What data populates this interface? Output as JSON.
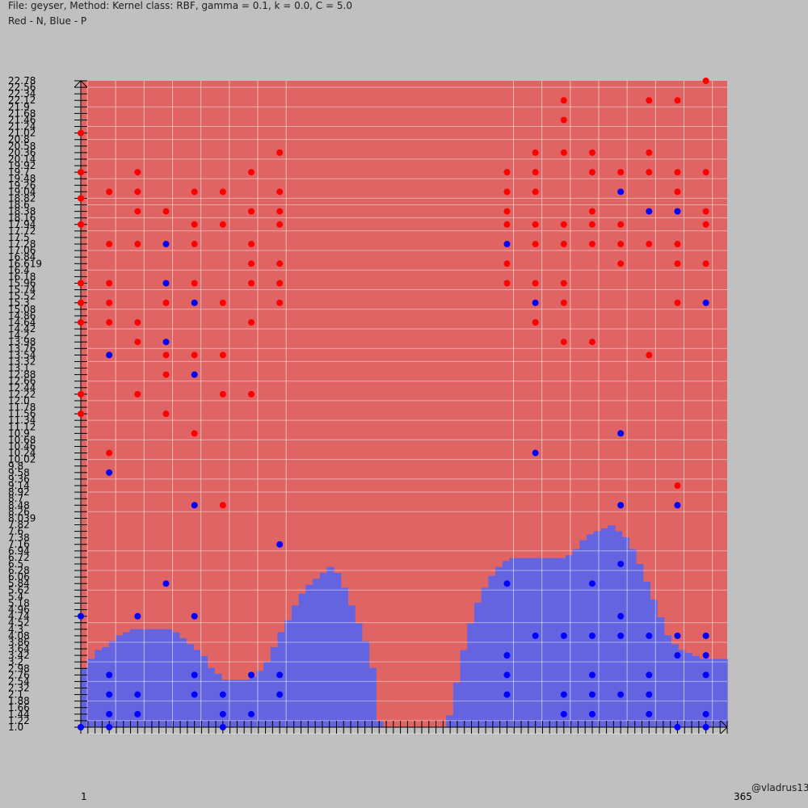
{
  "header": {
    "title": "File: geyser, Method: Kernel class: RBF, gamma = 0.1, k = 0.0, C = 5.0",
    "subtitle": "Red - N, Blue - P"
  },
  "credit": "@vladrus13",
  "colors": {
    "background": "#c0c0c0",
    "region_n": "#e06464",
    "region_p": "#6464e0",
    "point_n": "#ff0000",
    "point_p": "#0000ff"
  },
  "chart_data": {
    "type": "scatter",
    "title": "File: geyser, Method: Kernel class: RBF, gamma = 0.1, k = 0.0, C = 5.0",
    "legend": "Red - N, Blue - P",
    "xlim": [
      1,
      365
    ],
    "ylim": [
      1.0,
      22.78
    ],
    "x_ticks_visible_ends": [
      "1",
      "365"
    ],
    "y_tick_labels": [
      "1.0",
      "1.22",
      "1.44",
      "1.66",
      "1.88",
      "2.1",
      "2.32",
      "2.54",
      "2.76",
      "2.98",
      "3.2",
      "3.42",
      "3.64",
      "3.86",
      "4.08",
      "4.3",
      "4.52",
      "4.74",
      "4.96",
      "5.18",
      "5.4",
      "5.62",
      "5.84",
      "6.06",
      "6.28",
      "6.5",
      "6.72",
      "6.94",
      "7.16",
      "7.38",
      "7.6",
      "7.82",
      "8.039",
      "8.26",
      "8.48",
      "8.7",
      "8.92",
      "9.14",
      "9.36",
      "9.58",
      "9.8",
      "10.02",
      "10.24",
      "10.46",
      "10.68",
      "10.9",
      "11.12",
      "11.34",
      "11.56",
      "11.78",
      "12.0",
      "12.22",
      "12.44",
      "12.66",
      "12.88",
      "13.1",
      "13.32",
      "13.54",
      "13.76",
      "13.98",
      "14.2",
      "14.42",
      "14.64",
      "14.86",
      "15.08",
      "15.3",
      "15.52",
      "15.74",
      "15.96",
      "16.18",
      "16.4",
      "16.619",
      "16.84",
      "17.06",
      "17.28",
      "17.5",
      "17.72",
      "17.94",
      "18.16",
      "18.38",
      "18.6",
      "18.82",
      "19.04",
      "19.26",
      "19.48",
      "19.7",
      "19.92",
      "20.14",
      "20.36",
      "20.58",
      "20.8",
      "21.02",
      "21.24",
      "21.46",
      "21.68",
      "21.9",
      "22.12",
      "22.34",
      "22.56",
      "22.78"
    ],
    "decision_boundary_profile": {
      "description": "height of P (blue) region by x",
      "x": [
        1,
        5,
        9,
        13,
        17,
        21,
        25,
        29,
        33,
        37,
        41,
        45,
        49,
        53,
        57,
        61,
        65,
        69,
        73,
        77,
        81,
        85,
        89,
        93,
        97,
        101,
        105,
        109,
        113,
        117,
        121,
        125,
        129,
        133,
        137,
        141,
        145,
        149,
        153,
        157,
        161,
        165,
        169,
        173,
        177,
        181,
        185,
        189,
        193,
        197,
        201,
        205,
        209,
        213,
        217,
        221,
        225,
        229,
        233,
        237,
        241,
        245,
        249,
        253,
        257,
        261,
        265,
        269,
        273,
        277,
        281,
        285,
        289,
        293,
        297,
        301,
        305,
        309,
        313,
        317,
        321,
        325,
        329,
        333,
        337,
        341,
        345,
        349,
        353,
        357,
        361,
        365
      ],
      "y": [
        3.0,
        3.3,
        3.6,
        3.7,
        3.9,
        4.1,
        4.2,
        4.3,
        4.3,
        4.3,
        4.3,
        4.3,
        4.3,
        4.2,
        4.0,
        3.8,
        3.6,
        3.4,
        3.0,
        2.8,
        2.6,
        2.6,
        2.6,
        2.6,
        2.7,
        2.9,
        3.2,
        3.7,
        4.2,
        4.6,
        5.1,
        5.5,
        5.8,
        6.0,
        6.2,
        6.4,
        6.2,
        5.7,
        5.1,
        4.5,
        3.9,
        3.0,
        1.2,
        1.0,
        1.0,
        1.0,
        1.0,
        1.0,
        1.0,
        1.0,
        1.0,
        1.0,
        1.4,
        2.5,
        3.6,
        4.5,
        5.2,
        5.7,
        6.1,
        6.4,
        6.6,
        6.7,
        6.7,
        6.7,
        6.7,
        6.7,
        6.7,
        6.7,
        6.7,
        6.8,
        7.0,
        7.3,
        7.5,
        7.6,
        7.7,
        7.8,
        7.6,
        7.4,
        7.0,
        6.5,
        5.9,
        5.3,
        4.7,
        4.1,
        3.8,
        3.6,
        3.5,
        3.4,
        3.3,
        3.3,
        3.3,
        3.3
      ]
    },
    "series": [
      {
        "name": "N",
        "points": [
          [
            1,
            21.02
          ],
          [
            1,
            19.7
          ],
          [
            1,
            18.82
          ],
          [
            1,
            17.94
          ],
          [
            1,
            15.96
          ],
          [
            1,
            15.3
          ],
          [
            1,
            14.64
          ],
          [
            1,
            12.22
          ],
          [
            1,
            11.56
          ],
          [
            17,
            19.04
          ],
          [
            17,
            17.28
          ],
          [
            17,
            15.96
          ],
          [
            17,
            15.3
          ],
          [
            17,
            14.64
          ],
          [
            17,
            10.24
          ],
          [
            33,
            19.7
          ],
          [
            33,
            19.04
          ],
          [
            33,
            18.38
          ],
          [
            33,
            17.28
          ],
          [
            33,
            14.64
          ],
          [
            33,
            13.98
          ],
          [
            33,
            12.22
          ],
          [
            49,
            18.38
          ],
          [
            49,
            13.54
          ],
          [
            49,
            15.3
          ],
          [
            49,
            12.88
          ],
          [
            49,
            11.56
          ],
          [
            65,
            19.04
          ],
          [
            65,
            17.94
          ],
          [
            65,
            17.28
          ],
          [
            65,
            15.96
          ],
          [
            65,
            13.54
          ],
          [
            65,
            10.9
          ],
          [
            81,
            19.04
          ],
          [
            81,
            17.94
          ],
          [
            81,
            15.3
          ],
          [
            81,
            13.54
          ],
          [
            81,
            12.22
          ],
          [
            81,
            8.48
          ],
          [
            97,
            19.7
          ],
          [
            97,
            18.38
          ],
          [
            97,
            17.28
          ],
          [
            97,
            16.619
          ],
          [
            97,
            15.96
          ],
          [
            97,
            14.64
          ],
          [
            97,
            12.22
          ],
          [
            113,
            20.36
          ],
          [
            113,
            19.04
          ],
          [
            113,
            18.38
          ],
          [
            113,
            17.94
          ],
          [
            113,
            16.619
          ],
          [
            113,
            15.96
          ],
          [
            113,
            15.3
          ],
          [
            241,
            19.7
          ],
          [
            241,
            19.04
          ],
          [
            241,
            18.38
          ],
          [
            241,
            17.94
          ],
          [
            241,
            16.619
          ],
          [
            241,
            15.96
          ],
          [
            257,
            20.36
          ],
          [
            257,
            19.7
          ],
          [
            257,
            19.04
          ],
          [
            257,
            17.94
          ],
          [
            257,
            17.28
          ],
          [
            257,
            15.96
          ],
          [
            257,
            14.64
          ],
          [
            273,
            22.12
          ],
          [
            273,
            21.46
          ],
          [
            273,
            20.36
          ],
          [
            273,
            17.94
          ],
          [
            273,
            17.28
          ],
          [
            273,
            15.96
          ],
          [
            273,
            15.3
          ],
          [
            273,
            13.98
          ],
          [
            289,
            20.36
          ],
          [
            289,
            19.7
          ],
          [
            289,
            18.38
          ],
          [
            289,
            17.94
          ],
          [
            289,
            17.28
          ],
          [
            289,
            13.98
          ],
          [
            305,
            19.7
          ],
          [
            305,
            17.94
          ],
          [
            305,
            17.28
          ],
          [
            305,
            16.619
          ],
          [
            321,
            22.12
          ],
          [
            321,
            20.36
          ],
          [
            321,
            19.7
          ],
          [
            321,
            17.28
          ],
          [
            321,
            13.54
          ],
          [
            337,
            22.12
          ],
          [
            337,
            19.7
          ],
          [
            337,
            19.04
          ],
          [
            337,
            17.28
          ],
          [
            337,
            16.619
          ],
          [
            337,
            15.3
          ],
          [
            337,
            9.14
          ],
          [
            353,
            22.78
          ],
          [
            353,
            19.7
          ],
          [
            353,
            18.38
          ],
          [
            353,
            17.94
          ],
          [
            353,
            16.619
          ]
        ]
      },
      {
        "name": "P",
        "points": [
          [
            1,
            4.74
          ],
          [
            1,
            1.0
          ],
          [
            17,
            13.54
          ],
          [
            17,
            9.58
          ],
          [
            17,
            2.76
          ],
          [
            17,
            2.1
          ],
          [
            17,
            1.44
          ],
          [
            17,
            1.0
          ],
          [
            33,
            4.74
          ],
          [
            33,
            2.1
          ],
          [
            33,
            1.44
          ],
          [
            49,
            17.28
          ],
          [
            49,
            15.96
          ],
          [
            49,
            13.98
          ],
          [
            49,
            5.84
          ],
          [
            65,
            15.3
          ],
          [
            65,
            12.88
          ],
          [
            65,
            8.48
          ],
          [
            65,
            4.74
          ],
          [
            65,
            2.76
          ],
          [
            65,
            2.1
          ],
          [
            81,
            2.1
          ],
          [
            81,
            1.44
          ],
          [
            81,
            1.0
          ],
          [
            97,
            2.76
          ],
          [
            97,
            1.44
          ],
          [
            113,
            7.16
          ],
          [
            113,
            2.76
          ],
          [
            113,
            2.1
          ],
          [
            241,
            17.28
          ],
          [
            241,
            5.84
          ],
          [
            241,
            3.42
          ],
          [
            241,
            2.76
          ],
          [
            241,
            2.1
          ],
          [
            257,
            15.3
          ],
          [
            257,
            10.24
          ],
          [
            257,
            4.08
          ],
          [
            273,
            4.08
          ],
          [
            273,
            2.1
          ],
          [
            273,
            1.44
          ],
          [
            289,
            5.84
          ],
          [
            289,
            4.08
          ],
          [
            289,
            2.76
          ],
          [
            289,
            2.1
          ],
          [
            289,
            1.44
          ],
          [
            305,
            19.04
          ],
          [
            305,
            10.9
          ],
          [
            305,
            8.48
          ],
          [
            305,
            6.5
          ],
          [
            305,
            4.74
          ],
          [
            305,
            4.08
          ],
          [
            305,
            2.1
          ],
          [
            321,
            18.38
          ],
          [
            321,
            4.08
          ],
          [
            321,
            2.76
          ],
          [
            321,
            2.1
          ],
          [
            321,
            1.44
          ],
          [
            337,
            18.38
          ],
          [
            337,
            8.48
          ],
          [
            337,
            4.08
          ],
          [
            337,
            3.42
          ],
          [
            337,
            1.0
          ],
          [
            353,
            15.3
          ],
          [
            353,
            4.08
          ],
          [
            353,
            3.42
          ],
          [
            353,
            2.76
          ],
          [
            353,
            1.44
          ],
          [
            353,
            1.0
          ]
        ]
      }
    ]
  }
}
